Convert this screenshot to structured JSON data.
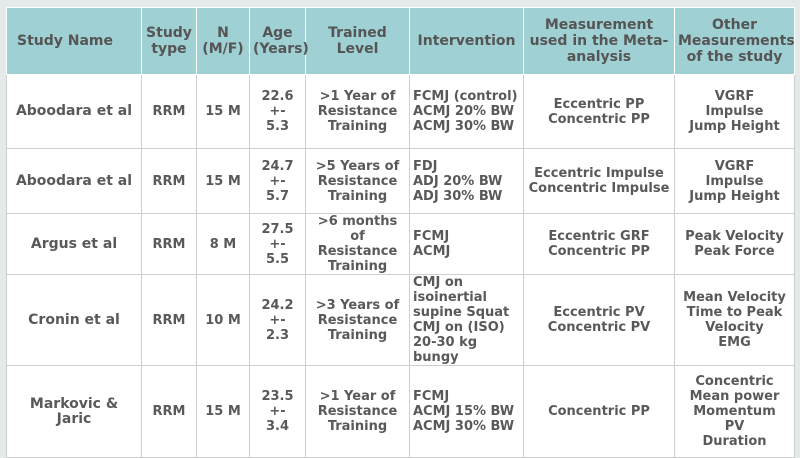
{
  "headers": {
    "study_name": "Study Name",
    "study_type": [
      "Study",
      "type"
    ],
    "n": [
      "N",
      "(M/F)"
    ],
    "age": [
      "Age",
      "(Years)"
    ],
    "trained": [
      "Trained",
      "Level"
    ],
    "intervention": "Intervention",
    "measurement": [
      "Measurement",
      "used in the Meta-",
      "analysis"
    ],
    "other": [
      "Other",
      "Measurements",
      "of the study"
    ]
  },
  "rows": [
    {
      "name": [
        "Aboodara et al"
      ],
      "type": "RRM",
      "n": "15 M",
      "age": [
        "22.6 +-",
        "5.3"
      ],
      "trained": [
        ">1 Year of",
        "Resistance",
        "Training"
      ],
      "intervention": [
        "FCMJ (control)",
        "ACMJ 20% BW",
        "ACMJ 30% BW"
      ],
      "measurement": [
        "Eccentric PP",
        "Concentric PP"
      ],
      "other": [
        "VGRF",
        "Impulse",
        "Jump Height"
      ]
    },
    {
      "name": [
        "Aboodara et al"
      ],
      "type": "RRM",
      "n": "15 M",
      "age": [
        "24.7 +-",
        "5.7"
      ],
      "trained": [
        ">5 Years of",
        "Resistance",
        "Training"
      ],
      "intervention": [
        "FDJ",
        "ADJ 20% BW",
        "ADJ 30% BW"
      ],
      "measurement": [
        "Eccentric Impulse",
        "Concentric Impulse"
      ],
      "other": [
        "VGRF",
        "Impulse",
        "Jump Height"
      ]
    },
    {
      "name": [
        "Argus et al"
      ],
      "type": "RRM",
      "n": "8 M",
      "age": [
        "27.5 +-",
        "5.5"
      ],
      "trained": [
        ">6 months of",
        "Resistance",
        "Training"
      ],
      "intervention": [
        "FCMJ",
        "ACMJ"
      ],
      "measurement": [
        "Eccentric GRF",
        "Concentric PP"
      ],
      "other": [
        "Peak Velocity",
        "Peak Force"
      ]
    },
    {
      "name": [
        "Cronin et al"
      ],
      "type": "RRM",
      "n": "10 M",
      "age": [
        "24.2 +-",
        "2.3"
      ],
      "trained": [
        ">3 Years of",
        "Resistance",
        "Training"
      ],
      "intervention": [
        "CMJ on",
        "isoinertial",
        "supine Squat",
        "CMJ on (ISO)",
        "20-30 kg bungy"
      ],
      "measurement": [
        "Eccentric PV",
        "Concentric PV"
      ],
      "other": [
        "Mean Velocity",
        "Time to Peak",
        "Velocity",
        "EMG"
      ]
    },
    {
      "name": [
        "Markovic &",
        "Jaric"
      ],
      "type": "RRM",
      "n": "15 M",
      "age": [
        "23.5 +-",
        "3.4"
      ],
      "trained": [
        ">1 Year of",
        "Resistance",
        "Training"
      ],
      "intervention": [
        "FCMJ",
        "ACMJ 15% BW",
        "ACMJ 30% BW"
      ],
      "measurement": [
        "Concentric PP"
      ],
      "other": [
        "Concentric",
        "Mean power",
        "Momentum",
        "PV",
        "Duration"
      ]
    }
  ]
}
